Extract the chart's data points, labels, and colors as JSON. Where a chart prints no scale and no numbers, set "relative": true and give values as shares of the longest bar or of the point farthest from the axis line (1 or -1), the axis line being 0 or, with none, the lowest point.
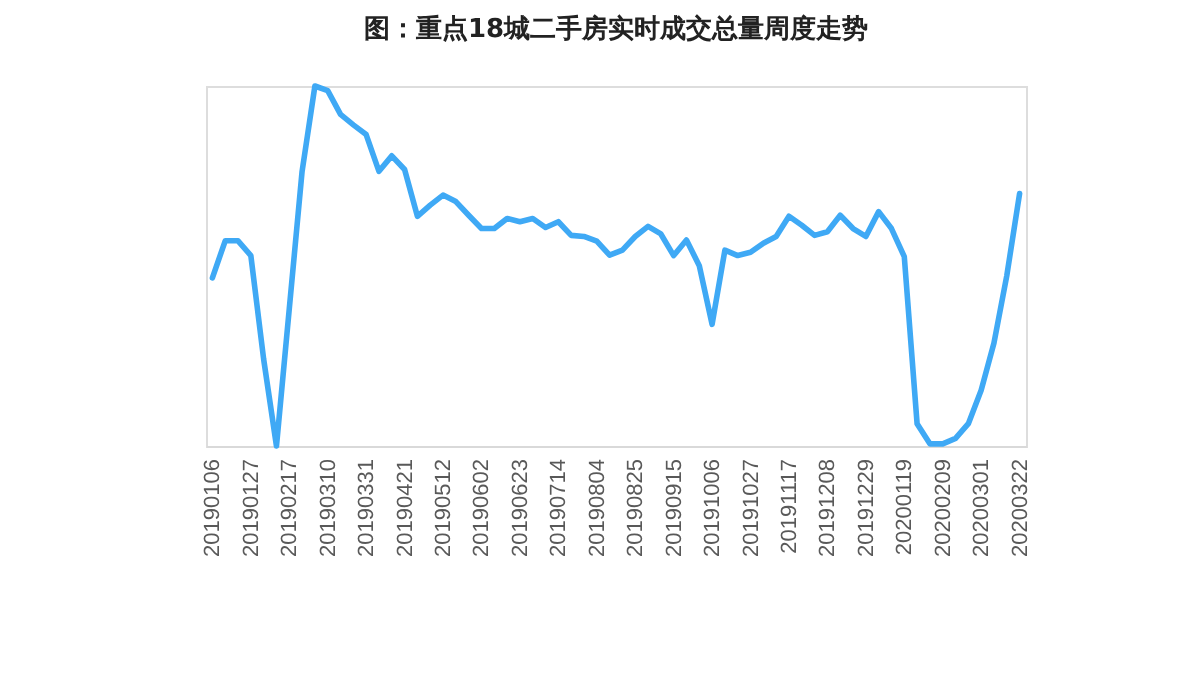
{
  "chart_data": {
    "type": "line",
    "title": "图：重点18城二手房实时成交总量周度走势",
    "relative": true,
    "categories": [
      "20190106",
      null,
      null,
      "20190127",
      null,
      null,
      "20190217",
      null,
      null,
      "20190310",
      null,
      null,
      "20190331",
      null,
      null,
      "20190421",
      null,
      null,
      "20190512",
      null,
      null,
      "20190602",
      null,
      null,
      "20190623",
      null,
      null,
      "20190714",
      null,
      null,
      "20190804",
      null,
      null,
      "20190825",
      null,
      null,
      "20190915",
      null,
      null,
      "20191006",
      null,
      null,
      "20191027",
      null,
      null,
      "20191117",
      null,
      null,
      "20191208",
      null,
      null,
      "20191229",
      null,
      null,
      "20200119",
      null,
      null,
      "20200209",
      null,
      null,
      "20200301",
      null,
      null,
      "20200322"
    ],
    "series": [
      {
        "color": "#3fa9f5",
        "values": [
          0.467,
          0.57,
          0.57,
          0.529,
          0.241,
          0.0,
          0.381,
          0.763,
          1.0,
          0.987,
          0.921,
          0.892,
          0.865,
          0.763,
          0.806,
          0.768,
          0.638,
          0.669,
          0.697,
          0.679,
          0.641,
          0.604,
          0.604,
          0.632,
          0.623,
          0.632,
          0.607,
          0.623,
          0.585,
          0.582,
          0.569,
          0.53,
          0.544,
          0.582,
          0.61,
          0.589,
          0.529,
          0.572,
          0.501,
          0.338,
          0.544,
          0.529,
          0.538,
          0.563,
          0.582,
          0.638,
          0.613,
          0.585,
          0.595,
          0.641,
          0.604,
          0.582,
          0.651,
          0.604,
          0.526,
          0.062,
          0.006,
          0.006,
          0.021,
          0.062,
          0.155,
          0.286,
          0.473,
          0.701
        ]
      }
    ],
    "grid": false,
    "marker": "none",
    "line_style": "solid"
  }
}
